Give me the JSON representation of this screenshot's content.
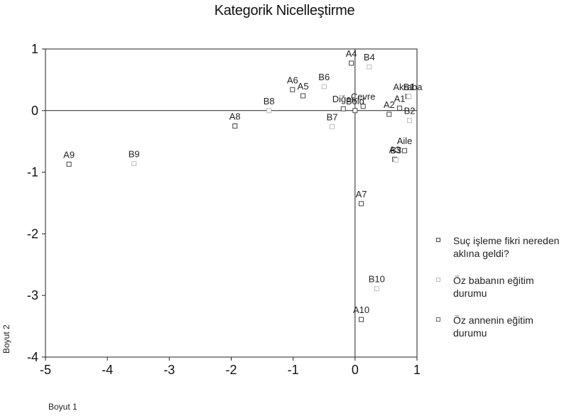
{
  "chart_data": {
    "type": "scatter",
    "title": "Kategorik Nicelleştirme",
    "xlabel": "Boyut 1",
    "ylabel": "Boyut 2",
    "xlim": [
      -5,
      1
    ],
    "ylim": [
      -4,
      1
    ],
    "xticks": [
      -5,
      -4,
      -3,
      -2,
      -1,
      0,
      1
    ],
    "yticks": [
      -4,
      -3,
      -2,
      -1,
      0,
      1
    ],
    "grid": false,
    "reference_lines": [
      0,
      0
    ],
    "legend_position": "right",
    "series": [
      {
        "name": "Suç işleme fikri nereden aklına geldi?",
        "color": "#444444",
        "points": [
          {
            "label": "A1",
            "x": 0.72,
            "y": 0.04
          },
          {
            "label": "A2",
            "x": 0.55,
            "y": -0.06
          },
          {
            "label": "A3",
            "x": 0.64,
            "y": -0.79
          },
          {
            "label": "A4",
            "x": -0.06,
            "y": 0.77
          },
          {
            "label": "A5",
            "x": -0.84,
            "y": 0.24
          },
          {
            "label": "A6",
            "x": -1.01,
            "y": 0.34
          },
          {
            "label": "A7",
            "x": 0.1,
            "y": -1.51
          },
          {
            "label": "A8",
            "x": -1.94,
            "y": -0.25
          },
          {
            "label": "A9",
            "x": -4.62,
            "y": -0.87
          },
          {
            "label": "A10",
            "x": 0.1,
            "y": -3.39
          },
          {
            "label": "Akraba",
            "x": 0.85,
            "y": 0.23
          },
          {
            "label": "Aile",
            "x": 0.8,
            "y": -0.65
          },
          {
            "label": "Çevre",
            "x": 0.13,
            "y": 0.07
          },
          {
            "label": "Diğer",
            "x": -0.19,
            "y": 0.03
          },
          {
            "label": "Bold",
            "x": 0.0,
            "y": 0.0
          }
        ]
      },
      {
        "name": "Öz babanın eğitim durumu",
        "color": "#bbbbbb",
        "points": [
          {
            "label": "B1",
            "x": 0.87,
            "y": 0.23
          },
          {
            "label": "B2",
            "x": 0.88,
            "y": -0.16
          },
          {
            "label": "B3",
            "x": 0.66,
            "y": -0.8
          },
          {
            "label": "B4",
            "x": 0.23,
            "y": 0.71
          },
          {
            "label": "B6",
            "x": -0.5,
            "y": 0.39
          },
          {
            "label": "B7",
            "x": -0.37,
            "y": -0.26
          },
          {
            "label": "B8",
            "x": -1.39,
            "y": 0.0
          },
          {
            "label": "B9",
            "x": -3.57,
            "y": -0.86
          },
          {
            "label": "B10",
            "x": 0.35,
            "y": -2.89
          }
        ]
      },
      {
        "name": "Öz annenin eğitim durumu",
        "color": "#666666",
        "points": []
      }
    ]
  }
}
